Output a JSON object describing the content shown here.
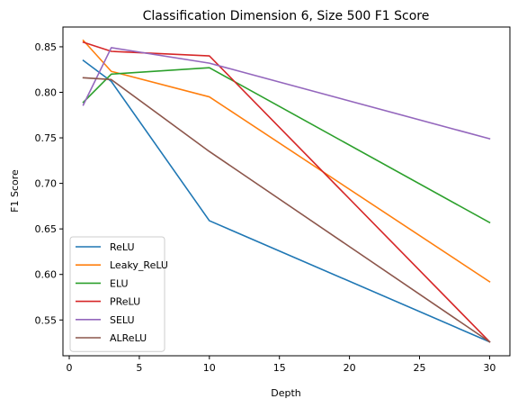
{
  "chart_data": {
    "type": "line",
    "title": "Classification Dimension 6, Size 500 F1 Score",
    "xlabel": "Depth",
    "ylabel": "F1 Score",
    "x": [
      1,
      3,
      10,
      30
    ],
    "xlim": [
      -0.45,
      31.45
    ],
    "ylim": [
      0.5107,
      0.8717
    ],
    "xticks": [
      0,
      5,
      10,
      15,
      20,
      25,
      30
    ],
    "yticks": [
      0.55,
      0.6,
      0.65,
      0.7,
      0.75,
      0.8,
      0.85
    ],
    "ytick_labels": [
      "0.55",
      "0.60",
      "0.65",
      "0.70",
      "0.75",
      "0.80",
      "0.85"
    ],
    "grid": false,
    "legend_position": "lower-left",
    "series": [
      {
        "name": "ReLU",
        "color": "#1f77b4",
        "values": [
          0.835,
          0.812,
          0.659,
          0.526
        ]
      },
      {
        "name": "Leaky_ReLU",
        "color": "#ff7f0e",
        "values": [
          0.857,
          0.823,
          0.795,
          0.592
        ]
      },
      {
        "name": "ELU",
        "color": "#2ca02c",
        "values": [
          0.789,
          0.82,
          0.827,
          0.657
        ]
      },
      {
        "name": "PReLU",
        "color": "#d62728",
        "values": [
          0.855,
          0.845,
          0.84,
          0.526
        ]
      },
      {
        "name": "SELU",
        "color": "#9467bd",
        "values": [
          0.786,
          0.849,
          0.832,
          0.749
        ]
      },
      {
        "name": "ALReLU",
        "color": "#8c564b",
        "values": [
          0.816,
          0.814,
          0.735,
          0.526
        ]
      }
    ]
  }
}
